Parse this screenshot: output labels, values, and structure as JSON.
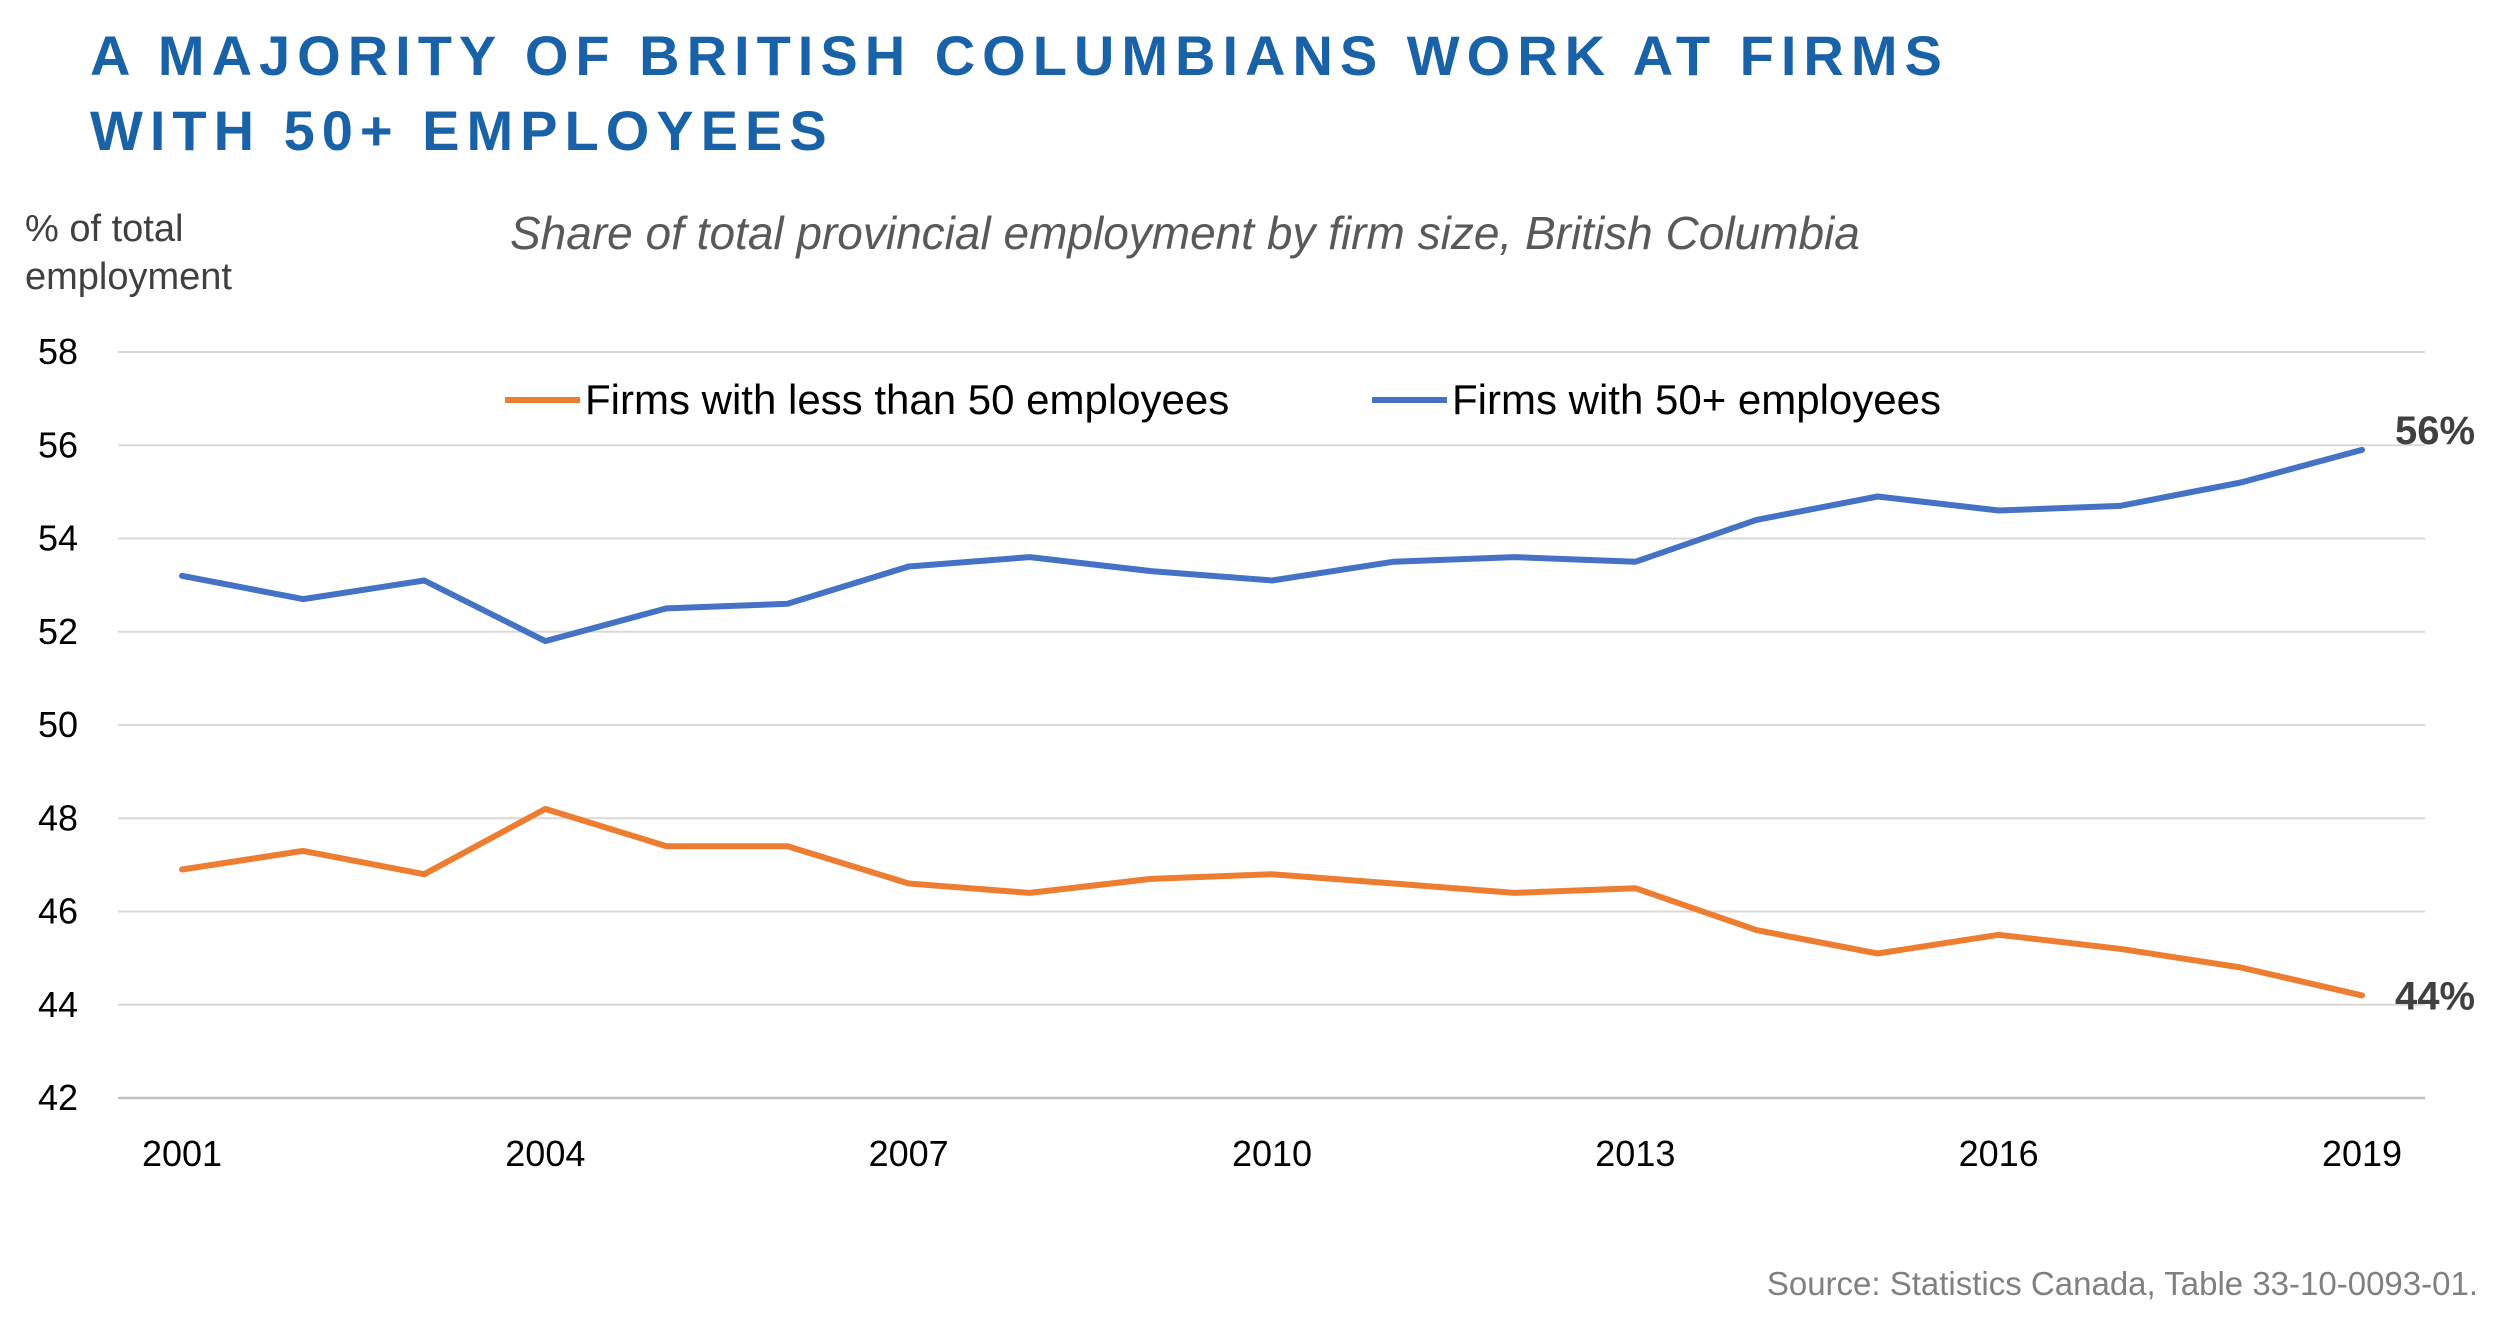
{
  "title_lines": [
    "A MAJORITY OF BRITISH COLUMBIANS WORK AT FIRMS",
    "WITH 50+ EMPLOYEES"
  ],
  "subtitle": "Share of total provincial employment by firm size, British Columbia",
  "ylabel_lines": [
    "% of total",
    "employment"
  ],
  "source": "Source: Statistics Canada, Table 33-10-0093-01.",
  "colors": {
    "title": "#1a62a8",
    "small_firms": "#ed7d31",
    "large_firms": "#4472c4",
    "grid": "#d9d9d9"
  },
  "chart_data": {
    "type": "line",
    "x": [
      2001,
      2002,
      2003,
      2004,
      2005,
      2006,
      2007,
      2008,
      2009,
      2010,
      2011,
      2012,
      2013,
      2014,
      2015,
      2016,
      2017,
      2018,
      2019
    ],
    "x_tick_labels": [
      "2001",
      "2004",
      "2007",
      "2010",
      "2013",
      "2016",
      "2019"
    ],
    "x_ticks": [
      2001,
      2004,
      2007,
      2010,
      2013,
      2016,
      2019
    ],
    "ylim": [
      42,
      58
    ],
    "y_ticks": [
      42,
      44,
      46,
      48,
      50,
      52,
      54,
      56,
      58
    ],
    "grid": true,
    "legend_position": "top",
    "series": [
      {
        "name": "Firms with less than 50 employees",
        "color": "#ed7d31",
        "values": [
          46.9,
          47.3,
          46.8,
          48.2,
          47.4,
          47.4,
          46.6,
          46.4,
          46.7,
          46.8,
          46.6,
          46.4,
          46.5,
          45.6,
          45.1,
          45.5,
          45.2,
          44.8,
          44.2
        ],
        "end_label": "44%"
      },
      {
        "name": "Firms with 50+ employees",
        "color": "#4472c4",
        "values": [
          53.2,
          52.7,
          53.1,
          51.8,
          52.5,
          52.6,
          53.4,
          53.6,
          53.3,
          53.1,
          53.5,
          53.6,
          53.5,
          54.4,
          54.9,
          54.6,
          54.7,
          55.2,
          55.9
        ],
        "end_label": "56%"
      }
    ]
  }
}
